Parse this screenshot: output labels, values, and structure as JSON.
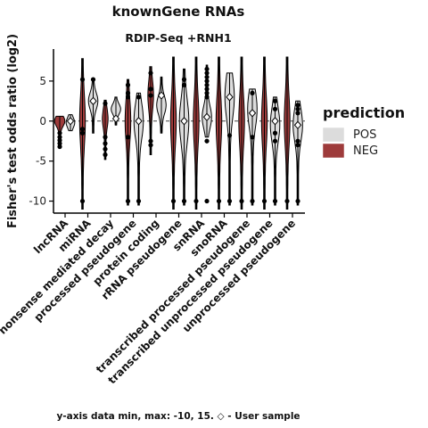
{
  "chart_data": {
    "type": "violin",
    "title": "knownGene RNAs",
    "subtitle": "RDIP-Seq +RNH1",
    "xlabel": "",
    "ylabel": "Fisher's test odds ratio (log2)",
    "ylim": [
      -11.5,
      9
    ],
    "yticks": [
      5,
      0,
      -5,
      -10
    ],
    "reference_line": 0,
    "footer": "y-axis data min, max: -10, 15. ◇ - User sample",
    "legend": {
      "title": "prediction",
      "position": "right",
      "entries": [
        {
          "label": "POS",
          "color": "#dcdcdc"
        },
        {
          "label": "NEG",
          "color": "#9e3b3b"
        }
      ]
    },
    "categories": [
      "lncRNA",
      "miRNA",
      "nonsense mediated decay",
      "processed pseudogene",
      "protein coding",
      "rRNA pseudogene",
      "snRNA",
      "snoRNA",
      "transcribed processed pseudogene",
      "transcribed unprocessed pseudogene",
      "unprocessed pseudogene"
    ],
    "series": [
      {
        "name": "NEG",
        "color": "#9e3b3b",
        "groups": [
          {
            "min": -3.2,
            "max": 0.6,
            "median": 0,
            "outliers": [
              -1.5,
              -2,
              -2.4,
              -2.8,
              -3.2
            ]
          },
          {
            "min": -11,
            "max": 7.8,
            "median": 0,
            "outliers": [
              -1,
              -1.5,
              -10,
              5.2
            ]
          },
          {
            "min": -4.8,
            "max": 2.6,
            "median": 0.3,
            "outliers": [
              -2,
              -2.8,
              -3.5,
              -4.2,
              2.2
            ]
          },
          {
            "min": -10.5,
            "max": 5.2,
            "median": 0,
            "outliers": [
              4.5,
              3.5,
              3,
              -2,
              -10
            ]
          },
          {
            "min": -4.2,
            "max": 6.8,
            "median": 3.2,
            "outliers": [
              6,
              4,
              3.2,
              -2.5,
              -3
            ]
          },
          {
            "min": -11,
            "max": 8,
            "median": 0,
            "outliers": [
              -10
            ]
          },
          {
            "min": -11,
            "max": 8,
            "median": 0,
            "outliers": [
              -10
            ]
          },
          {
            "min": -11,
            "max": 8,
            "median": 0,
            "outliers": [
              -10
            ]
          },
          {
            "min": -11,
            "max": 8,
            "median": 0,
            "outliers": [
              -10
            ]
          },
          {
            "min": -11,
            "max": 8,
            "median": 0,
            "outliers": [
              -10
            ]
          },
          {
            "min": -11,
            "max": 8,
            "median": 0,
            "outliers": [
              -10
            ]
          }
        ]
      },
      {
        "name": "POS",
        "color": "#dcdcdc",
        "groups": [
          {
            "min": -1.2,
            "max": 0.8,
            "median": -0.2,
            "outliers": []
          },
          {
            "min": -1.5,
            "max": 5,
            "median": 2.5,
            "outliers": [
              5.2
            ]
          },
          {
            "min": -0.5,
            "max": 3,
            "median": 1.5,
            "outliers": []
          },
          {
            "min": -10.5,
            "max": 3.5,
            "median": 0,
            "outliers": [
              3,
              -10
            ]
          },
          {
            "min": -1.5,
            "max": 5.5,
            "median": 2,
            "outliers": []
          },
          {
            "min": -10.5,
            "max": 6.5,
            "median": 0,
            "outliers": [
              5.2,
              4.5,
              -10
            ]
          },
          {
            "min": -2,
            "max": 7,
            "median": 0.5,
            "outliers": [
              6.5,
              6,
              5.5,
              5,
              4.5,
              4,
              3.5,
              3,
              -2.5,
              -10
            ]
          },
          {
            "min": -10.5,
            "max": 6,
            "median": 3,
            "outliers": [
              -1.8,
              -10
            ]
          },
          {
            "min": -10.5,
            "max": 4,
            "median": 1.5,
            "outliers": [
              3.5,
              -2,
              -10
            ]
          },
          {
            "min": -10.5,
            "max": 3,
            "median": -0.5,
            "outliers": [
              2.5,
              1.5,
              -1.5,
              -2.5,
              -10
            ]
          },
          {
            "min": -10.5,
            "max": 2.5,
            "median": -0.5,
            "outliers": [
              2,
              1.5,
              1,
              -2.5,
              -3,
              -10
            ]
          }
        ]
      }
    ],
    "user_sample": [
      0,
      2.5,
      0.3,
      0,
      3.2,
      0,
      0.5,
      3,
      1,
      0,
      -0.5
    ]
  }
}
